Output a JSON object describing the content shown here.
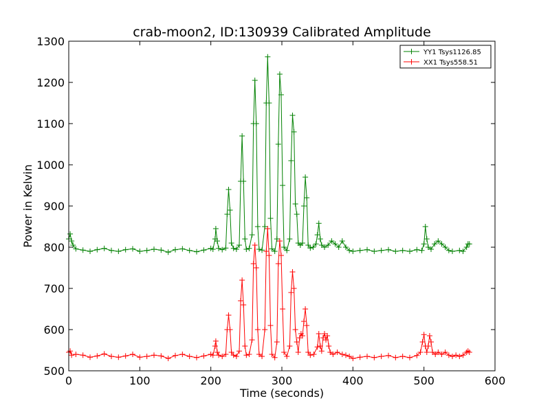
{
  "chart_data": {
    "type": "line",
    "title": "crab-moon2, ID:130939 Calibrated Amplitude",
    "xlabel": "Time (seconds)",
    "ylabel": "Power in Kelvin",
    "xlim": [
      0,
      600
    ],
    "ylim": [
      500,
      1300
    ],
    "xticks": [
      0,
      100,
      200,
      300,
      400,
      500,
      600
    ],
    "yticks": [
      500,
      600,
      700,
      800,
      900,
      1000,
      1100,
      1200,
      1300
    ],
    "grid": false,
    "legend_position": "top-right",
    "marker": "plus",
    "series": [
      {
        "name": "YY1 Tsys1126.85",
        "color": "#008000",
        "points": [
          [
            0,
            820
          ],
          [
            2,
            832
          ],
          [
            4,
            815
          ],
          [
            6,
            805
          ],
          [
            10,
            796
          ],
          [
            20,
            793
          ],
          [
            30,
            790
          ],
          [
            40,
            794
          ],
          [
            50,
            797
          ],
          [
            60,
            792
          ],
          [
            70,
            790
          ],
          [
            80,
            794
          ],
          [
            90,
            796
          ],
          [
            100,
            790
          ],
          [
            110,
            792
          ],
          [
            120,
            795
          ],
          [
            130,
            793
          ],
          [
            140,
            788
          ],
          [
            150,
            794
          ],
          [
            160,
            796
          ],
          [
            170,
            792
          ],
          [
            180,
            789
          ],
          [
            190,
            793
          ],
          [
            200,
            797
          ],
          [
            203,
            795
          ],
          [
            206,
            820
          ],
          [
            207,
            845
          ],
          [
            209,
            815
          ],
          [
            211,
            797
          ],
          [
            216,
            794
          ],
          [
            221,
            798
          ],
          [
            223,
            880
          ],
          [
            225,
            940
          ],
          [
            227,
            890
          ],
          [
            229,
            810
          ],
          [
            232,
            797
          ],
          [
            236,
            795
          ],
          [
            240,
            805
          ],
          [
            242,
            960
          ],
          [
            244,
            1070
          ],
          [
            246,
            960
          ],
          [
            248,
            820
          ],
          [
            250,
            795
          ],
          [
            254,
            797
          ],
          [
            258,
            830
          ],
          [
            260,
            1100
          ],
          [
            262,
            1205
          ],
          [
            264,
            1100
          ],
          [
            266,
            850
          ],
          [
            268,
            795
          ],
          [
            272,
            793
          ],
          [
            276,
            850
          ],
          [
            278,
            1150
          ],
          [
            280,
            1262
          ],
          [
            282,
            1150
          ],
          [
            284,
            870
          ],
          [
            286,
            796
          ],
          [
            290,
            790
          ],
          [
            293,
            820
          ],
          [
            295,
            1050
          ],
          [
            297,
            1220
          ],
          [
            299,
            1170
          ],
          [
            301,
            950
          ],
          [
            303,
            800
          ],
          [
            307,
            792
          ],
          [
            311,
            820
          ],
          [
            313,
            1010
          ],
          [
            315,
            1120
          ],
          [
            317,
            1080
          ],
          [
            319,
            905
          ],
          [
            321,
            880
          ],
          [
            323,
            810
          ],
          [
            326,
            805
          ],
          [
            329,
            810
          ],
          [
            331,
            900
          ],
          [
            333,
            970
          ],
          [
            335,
            920
          ],
          [
            337,
            805
          ],
          [
            340,
            798
          ],
          [
            344,
            800
          ],
          [
            348,
            808
          ],
          [
            350,
            830
          ],
          [
            352,
            858
          ],
          [
            354,
            820
          ],
          [
            356,
            805
          ],
          [
            360,
            800
          ],
          [
            365,
            805
          ],
          [
            370,
            815
          ],
          [
            375,
            808
          ],
          [
            380,
            800
          ],
          [
            385,
            815
          ],
          [
            390,
            800
          ],
          [
            395,
            792
          ],
          [
            400,
            790
          ],
          [
            410,
            792
          ],
          [
            420,
            794
          ],
          [
            430,
            790
          ],
          [
            440,
            792
          ],
          [
            450,
            794
          ],
          [
            460,
            790
          ],
          [
            470,
            792
          ],
          [
            480,
            790
          ],
          [
            490,
            794
          ],
          [
            497,
            792
          ],
          [
            500,
            808
          ],
          [
            502,
            850
          ],
          [
            504,
            820
          ],
          [
            506,
            800
          ],
          [
            510,
            795
          ],
          [
            515,
            808
          ],
          [
            520,
            815
          ],
          [
            525,
            808
          ],
          [
            530,
            800
          ],
          [
            535,
            792
          ],
          [
            540,
            790
          ],
          [
            550,
            792
          ],
          [
            555,
            790
          ],
          [
            560,
            800
          ],
          [
            562,
            808
          ],
          [
            564,
            808
          ]
        ]
      },
      {
        "name": "XX1 Tsys558.51",
        "color": "#ff0000",
        "points": [
          [
            0,
            545
          ],
          [
            2,
            548
          ],
          [
            4,
            538
          ],
          [
            10,
            540
          ],
          [
            20,
            538
          ],
          [
            30,
            533
          ],
          [
            40,
            536
          ],
          [
            50,
            541
          ],
          [
            60,
            535
          ],
          [
            70,
            533
          ],
          [
            80,
            536
          ],
          [
            90,
            540
          ],
          [
            100,
            533
          ],
          [
            110,
            535
          ],
          [
            120,
            538
          ],
          [
            130,
            536
          ],
          [
            140,
            530
          ],
          [
            150,
            537
          ],
          [
            160,
            540
          ],
          [
            170,
            535
          ],
          [
            180,
            532
          ],
          [
            190,
            536
          ],
          [
            200,
            540
          ],
          [
            203,
            538
          ],
          [
            206,
            560
          ],
          [
            207,
            572
          ],
          [
            209,
            545
          ],
          [
            211,
            538
          ],
          [
            216,
            535
          ],
          [
            221,
            540
          ],
          [
            223,
            600
          ],
          [
            225,
            635
          ],
          [
            227,
            600
          ],
          [
            229,
            545
          ],
          [
            232,
            538
          ],
          [
            236,
            535
          ],
          [
            240,
            548
          ],
          [
            242,
            670
          ],
          [
            244,
            720
          ],
          [
            246,
            660
          ],
          [
            248,
            560
          ],
          [
            250,
            538
          ],
          [
            254,
            540
          ],
          [
            258,
            575
          ],
          [
            260,
            760
          ],
          [
            262,
            805
          ],
          [
            264,
            750
          ],
          [
            266,
            600
          ],
          [
            268,
            540
          ],
          [
            272,
            535
          ],
          [
            276,
            600
          ],
          [
            278,
            790
          ],
          [
            280,
            845
          ],
          [
            282,
            780
          ],
          [
            284,
            610
          ],
          [
            286,
            540
          ],
          [
            290,
            532
          ],
          [
            293,
            570
          ],
          [
            295,
            760
          ],
          [
            297,
            815
          ],
          [
            299,
            780
          ],
          [
            301,
            650
          ],
          [
            303,
            545
          ],
          [
            307,
            535
          ],
          [
            311,
            560
          ],
          [
            313,
            690
          ],
          [
            315,
            740
          ],
          [
            317,
            700
          ],
          [
            319,
            600
          ],
          [
            321,
            570
          ],
          [
            323,
            545
          ],
          [
            325,
            580
          ],
          [
            327,
            590
          ],
          [
            329,
            585
          ],
          [
            331,
            620
          ],
          [
            333,
            650
          ],
          [
            335,
            610
          ],
          [
            337,
            545
          ],
          [
            340,
            538
          ],
          [
            345,
            540
          ],
          [
            350,
            558
          ],
          [
            352,
            590
          ],
          [
            354,
            560
          ],
          [
            356,
            548
          ],
          [
            358,
            580
          ],
          [
            360,
            590
          ],
          [
            362,
            575
          ],
          [
            364,
            585
          ],
          [
            366,
            560
          ],
          [
            368,
            545
          ],
          [
            372,
            540
          ],
          [
            378,
            545
          ],
          [
            385,
            540
          ],
          [
            390,
            538
          ],
          [
            395,
            535
          ],
          [
            400,
            530
          ],
          [
            410,
            533
          ],
          [
            420,
            535
          ],
          [
            430,
            532
          ],
          [
            440,
            535
          ],
          [
            450,
            537
          ],
          [
            460,
            532
          ],
          [
            470,
            535
          ],
          [
            480,
            532
          ],
          [
            490,
            537
          ],
          [
            495,
            545
          ],
          [
            498,
            570
          ],
          [
            500,
            588
          ],
          [
            502,
            560
          ],
          [
            504,
            545
          ],
          [
            506,
            560
          ],
          [
            508,
            585
          ],
          [
            510,
            570
          ],
          [
            512,
            545
          ],
          [
            516,
            540
          ],
          [
            520,
            545
          ],
          [
            525,
            540
          ],
          [
            530,
            545
          ],
          [
            535,
            538
          ],
          [
            540,
            535
          ],
          [
            545,
            538
          ],
          [
            550,
            535
          ],
          [
            555,
            538
          ],
          [
            560,
            545
          ],
          [
            562,
            548
          ],
          [
            564,
            545
          ]
        ]
      }
    ]
  }
}
